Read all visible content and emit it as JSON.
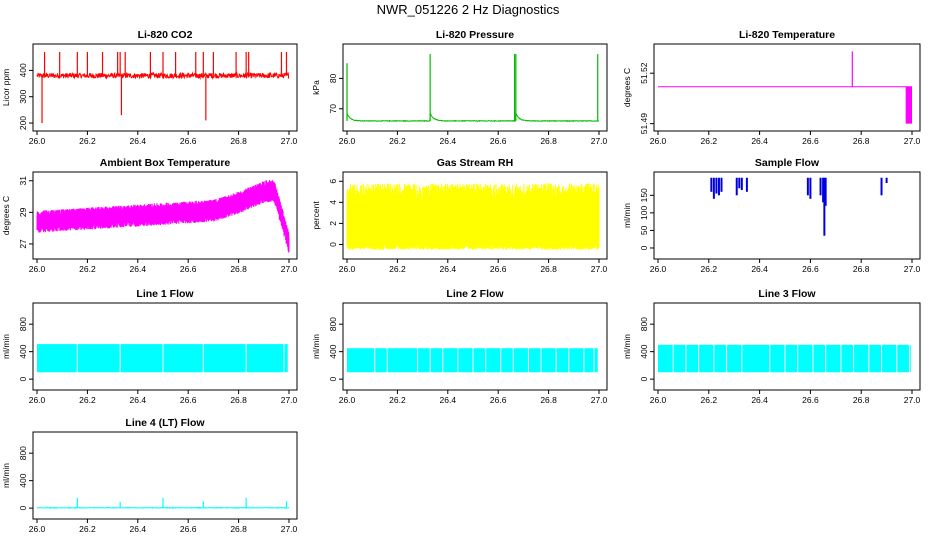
{
  "page": {
    "title": "NWR_051226  2 Hz Diagnostics"
  },
  "chart_data": [
    {
      "id": "co2",
      "type": "line",
      "title": "Li-820 CO2",
      "xlabel": "",
      "ylabel": "Licor ppm",
      "color": "#ff0000",
      "xlim": [
        26.0,
        27.0
      ],
      "ylim": [
        185,
        485
      ],
      "xticks": [
        "26.0",
        "26.2",
        "26.4",
        "26.6",
        "26.8",
        "27.0"
      ],
      "yticks": [
        200,
        300,
        400
      ],
      "baseline": 380,
      "noise": 10,
      "style": "spiky",
      "spikes": [
        [
          26.02,
          200
        ],
        [
          26.03,
          470
        ],
        [
          26.09,
          470
        ],
        [
          26.16,
          470
        ],
        [
          26.2,
          470
        ],
        [
          26.26,
          470
        ],
        [
          26.32,
          470
        ],
        [
          26.33,
          470
        ],
        [
          26.335,
          230
        ],
        [
          26.35,
          470
        ],
        [
          26.45,
          470
        ],
        [
          26.5,
          470
        ],
        [
          26.55,
          470
        ],
        [
          26.63,
          470
        ],
        [
          26.66,
          470
        ],
        [
          26.67,
          210
        ],
        [
          26.7,
          470
        ],
        [
          26.79,
          470
        ],
        [
          26.83,
          470
        ],
        [
          26.84,
          470
        ],
        [
          26.97,
          470
        ],
        [
          26.99,
          470
        ]
      ]
    },
    {
      "id": "pressure",
      "type": "line",
      "title": "Li-820 Pressure",
      "xlabel": "",
      "ylabel": "kPa",
      "color": "#00bb00",
      "xlim": [
        26.0,
        27.0
      ],
      "ylim": [
        64,
        90
      ],
      "xticks": [
        "26.0",
        "26.2",
        "26.4",
        "26.6",
        "26.8",
        "27.0"
      ],
      "yticks": [
        70,
        80
      ],
      "baseline": 66,
      "noise": 0.2,
      "style": "sawtooth",
      "decay_from": 68.5,
      "spikes": [
        [
          26.0,
          85
        ],
        [
          26.33,
          88
        ],
        [
          26.665,
          88
        ],
        [
          26.67,
          88
        ],
        [
          26.995,
          88
        ]
      ]
    },
    {
      "id": "licor_temp",
      "type": "line",
      "title": "Li-820 Temperature",
      "xlabel": "",
      "ylabel": "degrees C",
      "color": "#ff00ff",
      "xlim": [
        26.0,
        27.0
      ],
      "ylim": [
        51.488,
        51.535
      ],
      "xticks": [
        "26.0",
        "26.2",
        "26.4",
        "26.6",
        "26.8",
        "27.0"
      ],
      "yticks": [
        51.49,
        51.52
      ],
      "ytick_labels": [
        "51.49",
        "51.52"
      ],
      "baseline": 51.512,
      "noise": 0,
      "style": "flat",
      "spikes": [
        [
          26.765,
          51.533
        ]
      ],
      "block": {
        "x0": 26.975,
        "x1": 27.0,
        "y0": 51.49,
        "y1": 51.512
      }
    },
    {
      "id": "box_temp",
      "type": "line",
      "title": "Ambient Box Temperature",
      "xlabel": "",
      "ylabel": "degrees C",
      "color": "#ff00ff",
      "xlim": [
        26.0,
        27.0
      ],
      "ylim": [
        26.3,
        31.3
      ],
      "xticks": [
        "26.0",
        "26.2",
        "26.4",
        "26.6",
        "26.8",
        "27.0"
      ],
      "yticks": [
        27,
        29,
        31
      ],
      "trend": [
        [
          26.0,
          28.4
        ],
        [
          26.2,
          28.6
        ],
        [
          26.5,
          28.9
        ],
        [
          26.7,
          29.1
        ],
        [
          26.8,
          29.6
        ],
        [
          26.9,
          30.3
        ],
        [
          26.94,
          30.4
        ],
        [
          26.98,
          28.2
        ],
        [
          27.0,
          27.0
        ]
      ],
      "noise": 0.7,
      "style": "band"
    },
    {
      "id": "rh",
      "type": "line",
      "title": "Gas Stream RH",
      "xlabel": "",
      "ylabel": "percent",
      "color": "#ffff00",
      "xlim": [
        26.0,
        27.0
      ],
      "ylim": [
        -1,
        6.5
      ],
      "xticks": [
        "26.0",
        "26.2",
        "26.4",
        "26.6",
        "26.8",
        "27.0"
      ],
      "yticks": [
        0,
        2,
        4,
        6
      ],
      "baseline": 1.3,
      "noise": 2.5,
      "style": "band",
      "band_low": -0.5,
      "band_high": 5.8
    },
    {
      "id": "sample_flow",
      "type": "line",
      "title": "Sample Flow",
      "xlabel": "",
      "ylabel": "ml/min",
      "color": "#0000dd",
      "xlim": [
        26.0,
        27.0
      ],
      "ylim": [
        -20,
        205
      ],
      "xticks": [
        "26.0",
        "26.2",
        "26.4",
        "26.6",
        "26.8",
        "27.0"
      ],
      "yticks": [
        0,
        50,
        100,
        150
      ],
      "baseline": 200,
      "noise": 0,
      "style": "dropouts",
      "dips": [
        [
          26.21,
          160
        ],
        [
          26.22,
          140
        ],
        [
          26.23,
          155
        ],
        [
          26.24,
          150
        ],
        [
          26.25,
          160
        ],
        [
          26.31,
          150
        ],
        [
          26.32,
          170
        ],
        [
          26.33,
          165
        ],
        [
          26.35,
          160
        ],
        [
          26.59,
          150
        ],
        [
          26.6,
          140
        ],
        [
          26.64,
          150
        ],
        [
          26.65,
          130
        ],
        [
          26.655,
          35
        ],
        [
          26.66,
          120
        ],
        [
          26.88,
          150
        ],
        [
          26.9,
          185
        ]
      ]
    },
    {
      "id": "line1",
      "type": "line",
      "title": "Line 1 Flow",
      "xlabel": "",
      "ylabel": "ml/min",
      "color": "#00ffff",
      "xlim": [
        26.0,
        27.0
      ],
      "ylim": [
        -100,
        1050
      ],
      "xticks": [
        "26.0",
        "26.2",
        "26.4",
        "26.6",
        "26.8",
        "27.0"
      ],
      "yticks": [
        0,
        400,
        800
      ],
      "band_low": 100,
      "band_high": 510,
      "style": "block",
      "gaps": [
        26.16,
        26.33,
        26.5,
        26.66,
        26.83,
        26.98
      ]
    },
    {
      "id": "line2",
      "type": "line",
      "title": "Line 2 Flow",
      "xlabel": "",
      "ylabel": "ml/min",
      "color": "#00ffff",
      "xlim": [
        26.0,
        27.0
      ],
      "ylim": [
        -100,
        1050
      ],
      "xticks": [
        "26.0",
        "26.2",
        "26.4",
        "26.6",
        "26.8",
        "27.0"
      ],
      "yticks": [
        0,
        400,
        800
      ],
      "band_low": 100,
      "band_high": 450,
      "style": "block",
      "gaps": [
        26.11,
        26.16,
        26.28,
        26.33,
        26.38,
        26.44,
        26.5,
        26.55,
        26.61,
        26.66,
        26.72,
        26.77,
        26.83,
        26.88,
        26.94,
        26.98
      ]
    },
    {
      "id": "line3",
      "type": "line",
      "title": "Line 3 Flow",
      "xlabel": "",
      "ylabel": "ml/min",
      "color": "#00ffff",
      "xlim": [
        26.0,
        27.0
      ],
      "ylim": [
        -100,
        1050
      ],
      "xticks": [
        "26.0",
        "26.2",
        "26.4",
        "26.6",
        "26.8",
        "27.0"
      ],
      "yticks": [
        0,
        400,
        800
      ],
      "band_low": 100,
      "band_high": 500,
      "style": "block",
      "gaps": [
        26.06,
        26.11,
        26.16,
        26.22,
        26.27,
        26.33,
        26.44,
        26.5,
        26.55,
        26.61,
        26.66,
        26.72,
        26.77,
        26.83,
        26.88,
        26.94,
        26.99
      ]
    },
    {
      "id": "line4",
      "type": "line",
      "title": "Line 4 (LT) Flow",
      "xlabel": "",
      "ylabel": "ml/min",
      "color": "#00ffff",
      "xlim": [
        26.0,
        27.0
      ],
      "ylim": [
        -100,
        1050
      ],
      "xticks": [
        "26.0",
        "26.2",
        "26.4",
        "26.6",
        "26.8",
        "27.0"
      ],
      "yticks": [
        0,
        400,
        800
      ],
      "baseline": 5,
      "noise": 4,
      "style": "spiky",
      "spikes": [
        [
          26.16,
          150
        ],
        [
          26.33,
          90
        ],
        [
          26.5,
          150
        ],
        [
          26.66,
          100
        ],
        [
          26.83,
          150
        ],
        [
          26.99,
          100
        ]
      ]
    }
  ]
}
